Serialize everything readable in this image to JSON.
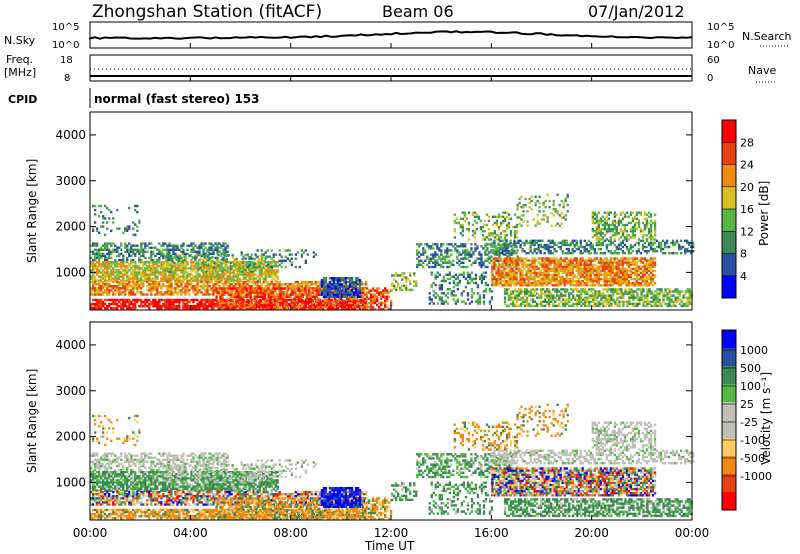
{
  "header": {
    "station": "Zhongshan Station (fitACF)",
    "beam": "Beam 06",
    "date": "07/Jan/2012"
  },
  "noise_panel": {
    "left_label": "N.Sky",
    "left_ticks": [
      "10^5",
      "10^0"
    ],
    "right_label": "N.Search",
    "right_ticks": [
      "10^5",
      "10^0"
    ]
  },
  "freq_panel": {
    "left_label_1": "Freq.",
    "left_label_2": "[MHz]",
    "left_ticks": [
      "18",
      "8"
    ],
    "right_label": "Nave",
    "right_ticks": [
      "60",
      "0"
    ]
  },
  "cpid": {
    "label": "CPID",
    "value": "normal (fast stereo) 153"
  },
  "colors": {
    "power_scale": [
      "#0000ff",
      "#2a4fa5",
      "#3a8a55",
      "#55b845",
      "#d8c020",
      "#f08a10",
      "#e84010",
      "#ff0000"
    ],
    "velocity_scale": [
      "#ff0000",
      "#e84010",
      "#f08a10",
      "#ffcc66",
      "#c0c0b8",
      "#c0c0b8",
      "#55b845",
      "#3a8a55",
      "#2a4fa5",
      "#0000ff"
    ]
  },
  "chart_data": [
    {
      "type": "heatmap",
      "name": "power",
      "ylabel": "Slant Range [km]",
      "xlabel": "Time UT",
      "ylim": [
        180,
        4500
      ],
      "y_ticks": [
        "1000",
        "2000",
        "3000",
        "4000"
      ],
      "x_ticks": [
        "00:00",
        "04:00",
        "08:00",
        "12:00",
        "16:00",
        "20:00",
        "00:00"
      ],
      "colorbar": {
        "label": "Power [dB]",
        "range": [
          0,
          32
        ],
        "ticks": [
          "4",
          "8",
          "12",
          "16",
          "20",
          "24",
          "28"
        ]
      }
    },
    {
      "type": "heatmap",
      "name": "velocity",
      "ylabel": "Slant Range [km]",
      "xlabel": "Time UT",
      "ylim": [
        180,
        4500
      ],
      "y_ticks": [
        "1000",
        "2000",
        "3000",
        "4000"
      ],
      "x_ticks": [
        "00:00",
        "04:00",
        "08:00",
        "12:00",
        "16:00",
        "20:00",
        "00:00"
      ],
      "colorbar": {
        "label": "Velocity [m s⁻¹]",
        "ticks": [
          "1000",
          "500",
          "100",
          "25",
          "-25",
          "-100",
          "-500",
          "-1000"
        ]
      }
    }
  ]
}
